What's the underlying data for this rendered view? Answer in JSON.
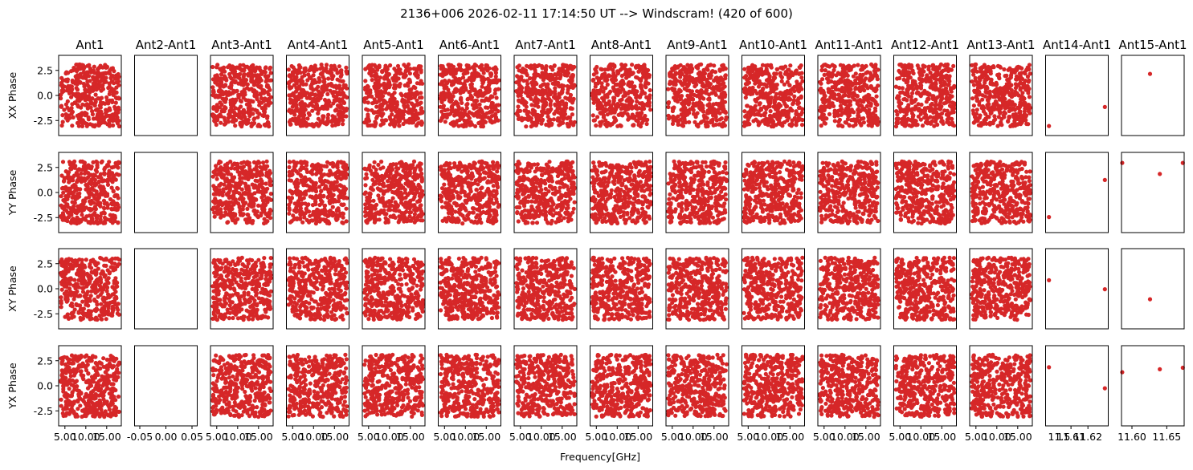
{
  "figure": {
    "suptitle": "2136+006 2026-02-11 17:14:50 UT --> Windscram! (420 of 600)",
    "xlabel": "Frequency[GHz]"
  },
  "colors": {
    "points": "#d62728",
    "frame": "#000000"
  },
  "chart_data": {
    "type": "scatter",
    "layout": "grid of 4 rows x 15 columns",
    "columns": [
      "Ant1",
      "Ant2-Ant1",
      "Ant3-Ant1",
      "Ant4-Ant1",
      "Ant5-Ant1",
      "Ant6-Ant1",
      "Ant7-Ant1",
      "Ant8-Ant1",
      "Ant9-Ant1",
      "Ant10-Ant1",
      "Ant11-Ant1",
      "Ant12-Ant1",
      "Ant13-Ant1",
      "Ant14-Ant1",
      "Ant15-Ant1"
    ],
    "rows": [
      "XX Phase",
      "YY Phase",
      "XY Phase",
      "YX Phase"
    ],
    "ylim": [
      -4,
      4
    ],
    "yticks": [
      2.5,
      0.0,
      -2.5
    ],
    "ytick_labels": [
      "2.5",
      "0.0",
      "-2.5"
    ],
    "column_xaxis": [
      {
        "xlim": [
          3.5,
          18.5
        ],
        "xticks": [
          5,
          10,
          15
        ],
        "xtick_labels": [
          "5.00",
          "10.00",
          "15.00"
        ]
      },
      {
        "xlim": [
          -0.06,
          0.06
        ],
        "xticks": [
          -0.05,
          0.0,
          0.05
        ],
        "xtick_labels": [
          "-0.05",
          "0.00",
          "0.05"
        ]
      },
      {
        "xlim": [
          3.5,
          18.5
        ],
        "xticks": [
          5,
          10,
          15
        ],
        "xtick_labels": [
          "5.00",
          "10.00",
          "15.00"
        ]
      },
      {
        "xlim": [
          3.5,
          18.5
        ],
        "xticks": [
          5,
          10,
          15
        ],
        "xtick_labels": [
          "5.00",
          "10.00",
          "15.00"
        ]
      },
      {
        "xlim": [
          3.5,
          18.5
        ],
        "xticks": [
          5,
          10,
          15
        ],
        "xtick_labels": [
          "5.00",
          "10.00",
          "15.00"
        ]
      },
      {
        "xlim": [
          3.5,
          18.5
        ],
        "xticks": [
          5,
          10,
          15
        ],
        "xtick_labels": [
          "5.00",
          "10.00",
          "15.00"
        ]
      },
      {
        "xlim": [
          3.5,
          18.5
        ],
        "xticks": [
          5,
          10,
          15
        ],
        "xtick_labels": [
          "5.00",
          "10.00",
          "15.00"
        ]
      },
      {
        "xlim": [
          3.5,
          18.5
        ],
        "xticks": [
          5,
          10,
          15
        ],
        "xtick_labels": [
          "5.00",
          "10.00",
          "15.00"
        ]
      },
      {
        "xlim": [
          3.5,
          18.5
        ],
        "xticks": [
          5,
          10,
          15
        ],
        "xtick_labels": [
          "5.00",
          "10.00",
          "15.00"
        ]
      },
      {
        "xlim": [
          3.5,
          18.5
        ],
        "xticks": [
          5,
          10,
          15
        ],
        "xtick_labels": [
          "5.00",
          "10.00",
          "15.00"
        ]
      },
      {
        "xlim": [
          3.5,
          18.5
        ],
        "xticks": [
          5,
          10,
          15
        ],
        "xtick_labels": [
          "5.00",
          "10.00",
          "15.00"
        ]
      },
      {
        "xlim": [
          3.5,
          18.5
        ],
        "xticks": [
          5,
          10,
          15
        ],
        "xtick_labels": [
          "5.00",
          "10.00",
          "15.00"
        ]
      },
      {
        "xlim": [
          3.5,
          18.5
        ],
        "xticks": [
          5,
          10,
          15
        ],
        "xtick_labels": [
          "5.00",
          "10.00",
          "15.00"
        ]
      },
      {
        "xlim": [
          11.595,
          11.632
        ],
        "xticks": [
          11.61,
          11.62
        ],
        "xtick_labels": [
          "11.61",
          "11.62"
        ],
        "extra_tick_labels": [
          {
            "x": 11.603,
            "label": "11.5"
          }
        ]
      },
      {
        "xlim": [
          11.585,
          11.675
        ],
        "xticks": [
          11.6,
          11.65
        ],
        "xtick_labels": [
          "11.60",
          "11.65"
        ]
      }
    ],
    "dense_panels": {
      "note": "Columns Ant1 and Ant3-Ant1 through Ant13-Ant1: ~400 points per panel, phase uniformly scattered between about -3.1 and 3.1 across 4 to 18 GHz",
      "x_range": [
        4.0,
        18.0
      ],
      "y_range": [
        -3.1,
        3.1
      ],
      "points_per_panel": 400
    },
    "empty_panels": [
      "Ant2-Ant1"
    ],
    "sparse_panels": {
      "Ant14-Ant1": {
        "XX Phase": [
          [
            11.597,
            -3.05
          ],
          [
            11.63,
            -1.15
          ]
        ],
        "YY Phase": [
          [
            11.597,
            -2.45
          ],
          [
            11.63,
            1.25
          ]
        ],
        "XY Phase": [
          [
            11.597,
            0.85
          ],
          [
            11.63,
            -0.05
          ]
        ],
        "YX Phase": [
          [
            11.597,
            1.85
          ],
          [
            11.63,
            -0.25
          ]
        ]
      },
      "Ant15-Ant1": {
        "XX Phase": [
          [
            11.626,
            2.15
          ]
        ],
        "YY Phase": [
          [
            11.586,
            2.95
          ],
          [
            11.64,
            1.85
          ],
          [
            11.673,
            2.95
          ]
        ],
        "XY Phase": [
          [
            11.626,
            -1.05
          ]
        ],
        "YX Phase": [
          [
            11.586,
            1.35
          ],
          [
            11.64,
            1.65
          ],
          [
            11.673,
            1.8
          ]
        ]
      }
    }
  }
}
